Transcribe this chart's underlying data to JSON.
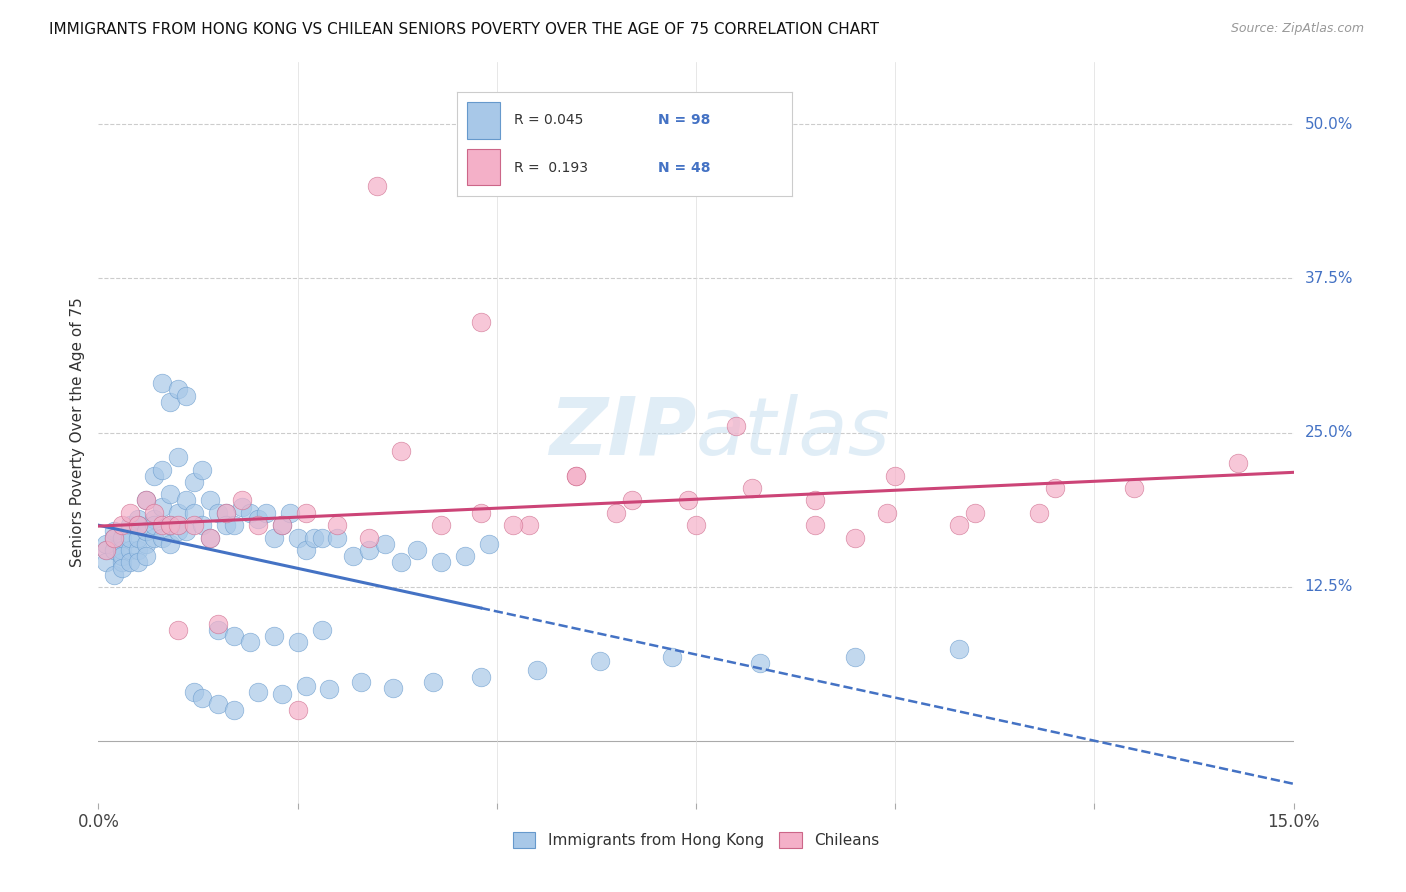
{
  "title": "IMMIGRANTS FROM HONG KONG VS CHILEAN SENIORS POVERTY OVER THE AGE OF 75 CORRELATION CHART",
  "source": "Source: ZipAtlas.com",
  "ylabel": "Seniors Poverty Over the Age of 75",
  "ytick_vals": [
    0.5,
    0.375,
    0.25,
    0.125
  ],
  "ytick_labels": [
    "50.0%",
    "37.5%",
    "25.0%",
    "12.5%"
  ],
  "xlim": [
    0.0,
    0.15
  ],
  "ylim": [
    -0.05,
    0.55
  ],
  "hk_color": "#a8c8e8",
  "hk_edge": "#6699cc",
  "hk_line_color": "#4472c4",
  "chilean_color": "#f4b0c8",
  "chilean_edge": "#cc6688",
  "chilean_line_color": "#cc4477",
  "watermark": "ZIPatlas",
  "legend_label_hk": "Immigrants from Hong Kong",
  "legend_label_ch": "Chileans",
  "R_hk": 0.045,
  "N_hk": 98,
  "R_ch": 0.193,
  "N_ch": 48,
  "hk_x": [
    0.001,
    0.001,
    0.001,
    0.002,
    0.002,
    0.002,
    0.002,
    0.003,
    0.003,
    0.003,
    0.003,
    0.003,
    0.004,
    0.004,
    0.004,
    0.004,
    0.005,
    0.005,
    0.005,
    0.005,
    0.005,
    0.006,
    0.006,
    0.006,
    0.006,
    0.007,
    0.007,
    0.007,
    0.007,
    0.008,
    0.008,
    0.008,
    0.009,
    0.009,
    0.009,
    0.01,
    0.01,
    0.01,
    0.011,
    0.011,
    0.012,
    0.012,
    0.013,
    0.013,
    0.014,
    0.014,
    0.015,
    0.016,
    0.016,
    0.017,
    0.018,
    0.019,
    0.02,
    0.021,
    0.022,
    0.023,
    0.024,
    0.025,
    0.026,
    0.027,
    0.028,
    0.03,
    0.032,
    0.034,
    0.036,
    0.038,
    0.04,
    0.043,
    0.046,
    0.049,
    0.015,
    0.017,
    0.019,
    0.022,
    0.025,
    0.028,
    0.008,
    0.009,
    0.01,
    0.011,
    0.012,
    0.013,
    0.015,
    0.017,
    0.02,
    0.023,
    0.026,
    0.029,
    0.033,
    0.037,
    0.042,
    0.048,
    0.055,
    0.063,
    0.072,
    0.083,
    0.095,
    0.108
  ],
  "hk_y": [
    0.155,
    0.16,
    0.145,
    0.135,
    0.17,
    0.155,
    0.165,
    0.145,
    0.155,
    0.165,
    0.15,
    0.14,
    0.175,
    0.155,
    0.165,
    0.145,
    0.18,
    0.155,
    0.145,
    0.165,
    0.175,
    0.195,
    0.16,
    0.17,
    0.15,
    0.215,
    0.18,
    0.165,
    0.175,
    0.22,
    0.19,
    0.165,
    0.2,
    0.175,
    0.16,
    0.23,
    0.185,
    0.17,
    0.195,
    0.17,
    0.21,
    0.185,
    0.22,
    0.175,
    0.195,
    0.165,
    0.185,
    0.185,
    0.175,
    0.175,
    0.19,
    0.185,
    0.18,
    0.185,
    0.165,
    0.175,
    0.185,
    0.165,
    0.155,
    0.165,
    0.165,
    0.165,
    0.15,
    0.155,
    0.16,
    0.145,
    0.155,
    0.145,
    0.15,
    0.16,
    0.09,
    0.085,
    0.08,
    0.085,
    0.08,
    0.09,
    0.29,
    0.275,
    0.285,
    0.28,
    0.04,
    0.035,
    0.03,
    0.025,
    0.04,
    0.038,
    0.045,
    0.042,
    0.048,
    0.043,
    0.048,
    0.052,
    0.058,
    0.065,
    0.068,
    0.063,
    0.068,
    0.075
  ],
  "ch_x": [
    0.001,
    0.002,
    0.003,
    0.004,
    0.005,
    0.006,
    0.007,
    0.008,
    0.009,
    0.01,
    0.012,
    0.014,
    0.016,
    0.018,
    0.02,
    0.023,
    0.026,
    0.03,
    0.034,
    0.038,
    0.043,
    0.048,
    0.054,
    0.06,
    0.067,
    0.074,
    0.082,
    0.09,
    0.099,
    0.108,
    0.118,
    0.13,
    0.143,
    0.035,
    0.048,
    0.052,
    0.06,
    0.065,
    0.075,
    0.08,
    0.09,
    0.095,
    0.1,
    0.11,
    0.12,
    0.01,
    0.015,
    0.025
  ],
  "ch_y": [
    0.155,
    0.165,
    0.175,
    0.185,
    0.175,
    0.195,
    0.185,
    0.175,
    0.175,
    0.175,
    0.175,
    0.165,
    0.185,
    0.195,
    0.175,
    0.175,
    0.185,
    0.175,
    0.165,
    0.235,
    0.175,
    0.185,
    0.175,
    0.215,
    0.195,
    0.195,
    0.205,
    0.195,
    0.185,
    0.175,
    0.185,
    0.205,
    0.225,
    0.45,
    0.34,
    0.175,
    0.215,
    0.185,
    0.175,
    0.255,
    0.175,
    0.165,
    0.215,
    0.185,
    0.205,
    0.09,
    0.095,
    0.025
  ]
}
